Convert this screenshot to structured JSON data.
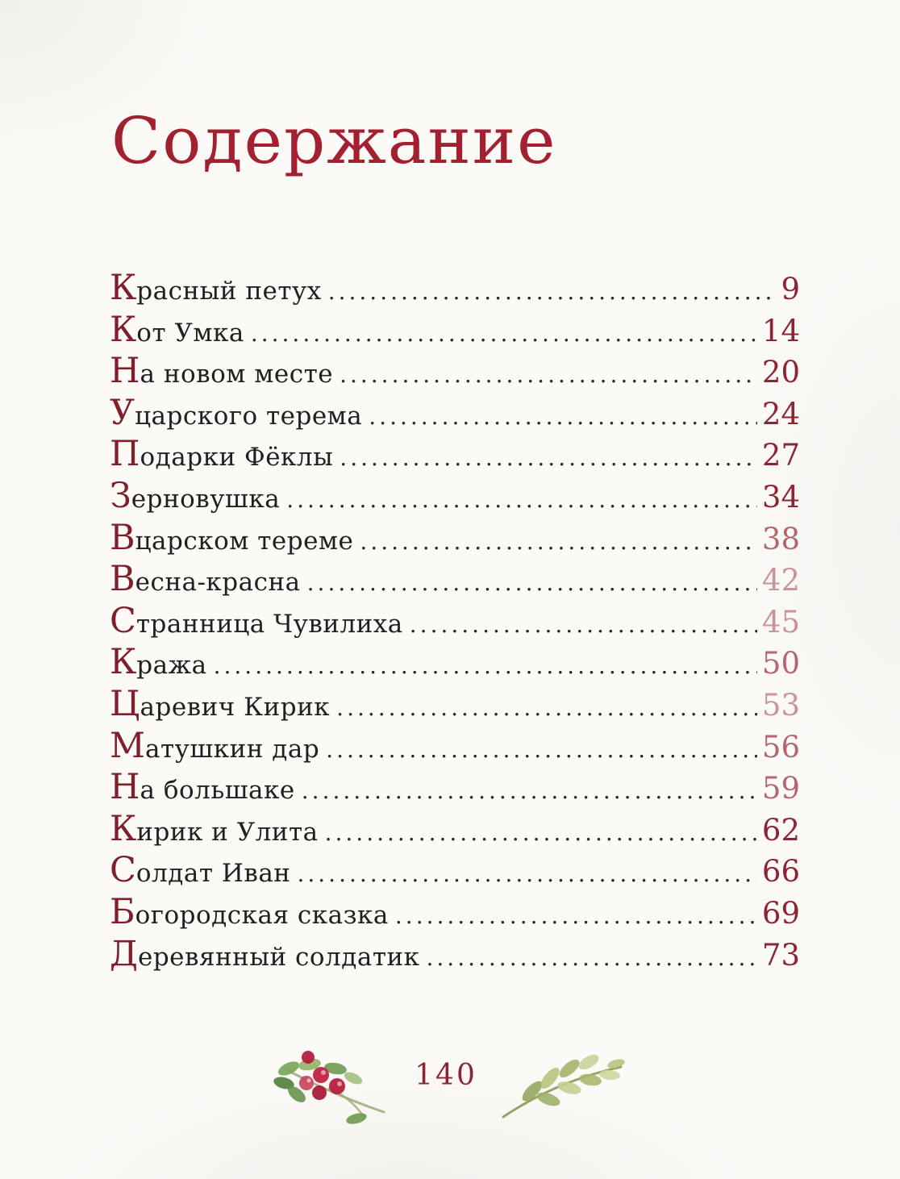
{
  "page": {
    "title": "Содержание",
    "toc": {
      "entries": [
        {
          "title": "Красный петух",
          "page": "9",
          "tone": "dark"
        },
        {
          "title": "Кот Умка",
          "page": "14",
          "tone": "dark"
        },
        {
          "title": "На новом месте",
          "page": "20",
          "tone": "dark"
        },
        {
          "title": "У царского терема",
          "page": "24",
          "tone": "dark"
        },
        {
          "title": "Подарки Фёклы",
          "page": "27",
          "tone": "dark"
        },
        {
          "title": "Зерновушка",
          "page": "34",
          "tone": "dark"
        },
        {
          "title": "В царском тереме",
          "page": "38",
          "tone": "medium"
        },
        {
          "title": "Весна-красна",
          "page": "42",
          "tone": "faded"
        },
        {
          "title": "Странница Чувилиха",
          "page": "45",
          "tone": "faded"
        },
        {
          "title": "Кража",
          "page": "50",
          "tone": "medium"
        },
        {
          "title": "Царевич Кирик",
          "page": "53",
          "tone": "faded"
        },
        {
          "title": "Матушкин дар",
          "page": "56",
          "tone": "medium"
        },
        {
          "title": "На большаке",
          "page": "59",
          "tone": "medium"
        },
        {
          "title": "Кирик и Улита",
          "page": "62",
          "tone": "dark"
        },
        {
          "title": "Солдат Иван",
          "page": "66",
          "tone": "dark"
        },
        {
          "title": "Богородская сказка",
          "page": "69",
          "tone": "dark"
        },
        {
          "title": "Деревянный солдатик",
          "page": "73",
          "tone": "dark"
        }
      ]
    },
    "footer": {
      "page_number": "140",
      "left_ornament": "lingonberry-sprig",
      "right_ornament": "leaf-branch"
    },
    "colors": {
      "title_red": "#a32031",
      "initial_red": "#7e1f2a",
      "text_black": "#221f1f",
      "page_num_dark": "#8e2433",
      "page_num_medium": "#b4666f",
      "page_num_faded": "#c9939a",
      "leader_dots": "#2b2a2a",
      "background": "#fbfaf7",
      "berry_red": "#c32347",
      "leaf_green": "#6f9a4e",
      "branch_green": "#aebc72"
    }
  }
}
